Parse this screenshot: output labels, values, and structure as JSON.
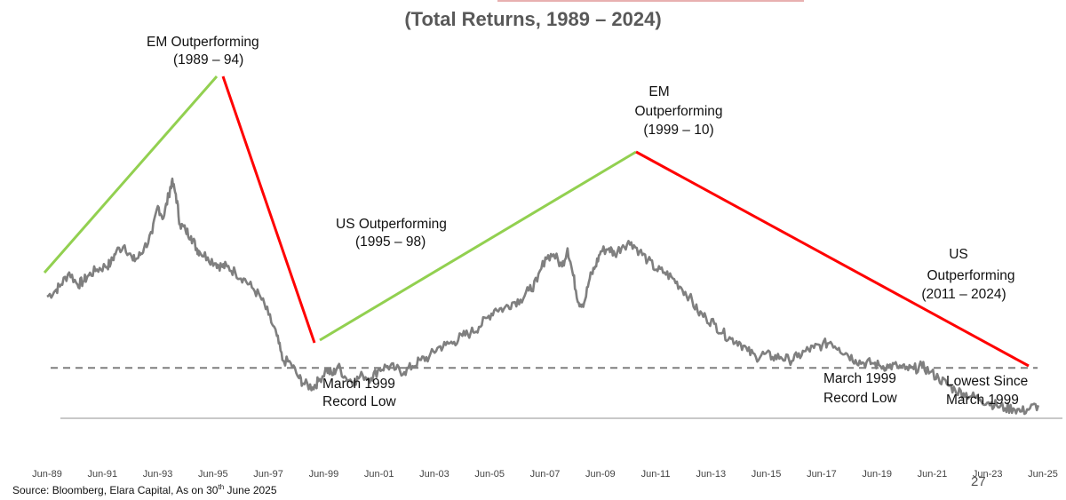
{
  "chart_data": {
    "type": "line",
    "title": "(Total Returns, 1989 – 2024)",
    "x_tick_labels": [
      "Jun-89",
      "Jun-91",
      "Jun-93",
      "Jun-95",
      "Jun-97",
      "Jun-99",
      "Jun-01",
      "Jun-03",
      "Jun-05",
      "Jun-07",
      "Jun-09",
      "Jun-11",
      "Jun-13",
      "Jun-15",
      "Jun-17",
      "Jun-19",
      "Jun-21",
      "Jun-23",
      "Jun-25"
    ],
    "xlim": [
      1989.5,
      2025.5
    ],
    "ylim": [
      0,
      1
    ],
    "y_axis_labels": "none",
    "grid": false,
    "legend": "none",
    "series": [
      {
        "color": "#7f7f7f",
        "x": [
          1989.5,
          1989.8,
          1990.0,
          1990.3,
          1990.6,
          1990.8,
          1991.0,
          1991.3,
          1991.6,
          1991.8,
          1992.0,
          1992.3,
          1992.6,
          1992.8,
          1993.0,
          1993.3,
          1993.5,
          1993.7,
          1993.9,
          1994.0,
          1994.15,
          1994.3,
          1994.5,
          1994.7,
          1994.9,
          1995.0,
          1995.3,
          1995.6,
          1995.8,
          1996.0,
          1996.3,
          1996.6,
          1996.9,
          1997.2,
          1997.5,
          1997.8,
          1998.0,
          1998.3,
          1998.6,
          1998.8,
          1999.1,
          1999.3,
          1999.6,
          1999.8,
          2000.0,
          2000.3,
          2000.6,
          2000.9,
          2001.2,
          2001.5,
          2001.8,
          2002.1,
          2002.4,
          2002.7,
          2003.0,
          2003.3,
          2003.6,
          2003.9,
          2004.2,
          2004.5,
          2004.8,
          2005.1,
          2005.4,
          2005.7,
          2006.0,
          2006.3,
          2006.6,
          2006.9,
          2007.2,
          2007.5,
          2007.8,
          2008.1,
          2008.3,
          2008.5,
          2008.7,
          2008.9,
          2009.1,
          2009.3,
          2009.5,
          2009.8,
          2010.0,
          2010.3,
          2010.6,
          2010.9,
          2011.2,
          2011.5,
          2011.8,
          2012.1,
          2012.4,
          2012.7,
          2013.0,
          2013.3,
          2013.6,
          2013.9,
          2014.2,
          2014.5,
          2014.8,
          2015.1,
          2015.4,
          2015.7,
          2016.0,
          2016.3,
          2016.6,
          2016.9,
          2017.2,
          2017.5,
          2017.8,
          2018.1,
          2018.4,
          2018.7,
          2019.0,
          2019.3,
          2019.6,
          2019.9,
          2020.2,
          2020.5,
          2020.8,
          2021.1,
          2021.4,
          2021.7,
          2022.0,
          2022.3,
          2022.6,
          2022.9,
          2023.2,
          2023.5,
          2023.8,
          2024.1,
          2024.4,
          2024.7,
          2025.0,
          2025.3
        ],
        "y": [
          0.4,
          0.42,
          0.44,
          0.48,
          0.44,
          0.45,
          0.47,
          0.49,
          0.5,
          0.51,
          0.55,
          0.57,
          0.52,
          0.53,
          0.56,
          0.61,
          0.7,
          0.66,
          0.74,
          0.78,
          0.74,
          0.64,
          0.62,
          0.6,
          0.56,
          0.55,
          0.53,
          0.51,
          0.5,
          0.5,
          0.48,
          0.46,
          0.43,
          0.4,
          0.34,
          0.27,
          0.19,
          0.18,
          0.13,
          0.11,
          0.1,
          0.12,
          0.16,
          0.14,
          0.17,
          0.13,
          0.12,
          0.14,
          0.13,
          0.16,
          0.17,
          0.16,
          0.15,
          0.17,
          0.19,
          0.2,
          0.23,
          0.24,
          0.25,
          0.27,
          0.28,
          0.3,
          0.33,
          0.36,
          0.36,
          0.38,
          0.39,
          0.42,
          0.45,
          0.53,
          0.54,
          0.5,
          0.56,
          0.47,
          0.38,
          0.38,
          0.46,
          0.5,
          0.55,
          0.56,
          0.54,
          0.57,
          0.58,
          0.55,
          0.52,
          0.49,
          0.48,
          0.46,
          0.43,
          0.4,
          0.35,
          0.33,
          0.31,
          0.28,
          0.26,
          0.25,
          0.22,
          0.2,
          0.21,
          0.2,
          0.2,
          0.19,
          0.2,
          0.22,
          0.23,
          0.24,
          0.25,
          0.23,
          0.21,
          0.19,
          0.18,
          0.18,
          0.17,
          0.17,
          0.17,
          0.16,
          0.16,
          0.17,
          0.15,
          0.13,
          0.11,
          0.09,
          0.08,
          0.07,
          0.06,
          0.05,
          0.04,
          0.03,
          0.03,
          0.02,
          0.03,
          0.04
        ]
      }
    ],
    "dashed_reference_value": 0.17,
    "baseline_value": 0.0,
    "annotations": [
      {
        "text": "EM Outperforming",
        "line2": "(1989 – 94)"
      },
      {
        "text": "US Outperforming",
        "line2": "(1995 – 98)"
      },
      {
        "text": "EM",
        "line2": "Outperforming",
        "line3": "(1999 – 10)"
      },
      {
        "text": "US",
        "line2": "Outperforming",
        "line3": "(2011 – 2024)"
      },
      {
        "text": "March 1999",
        "line2": "Record Low"
      },
      {
        "text": "March 1999",
        "line2": "Record Low"
      },
      {
        "text": "Lowest Since",
        "line2": "March 1999"
      }
    ],
    "trend_colors": {
      "em": "#92d050",
      "us": "#ff0000"
    },
    "dashed_color": "#7f7f7f",
    "axis_color": "#a6a6a6"
  },
  "source_text": "Source: Bloomberg, Elara Capital,  As on 30",
  "source_sup": "th",
  "source_tail": " June 2025",
  "page_number": "27"
}
